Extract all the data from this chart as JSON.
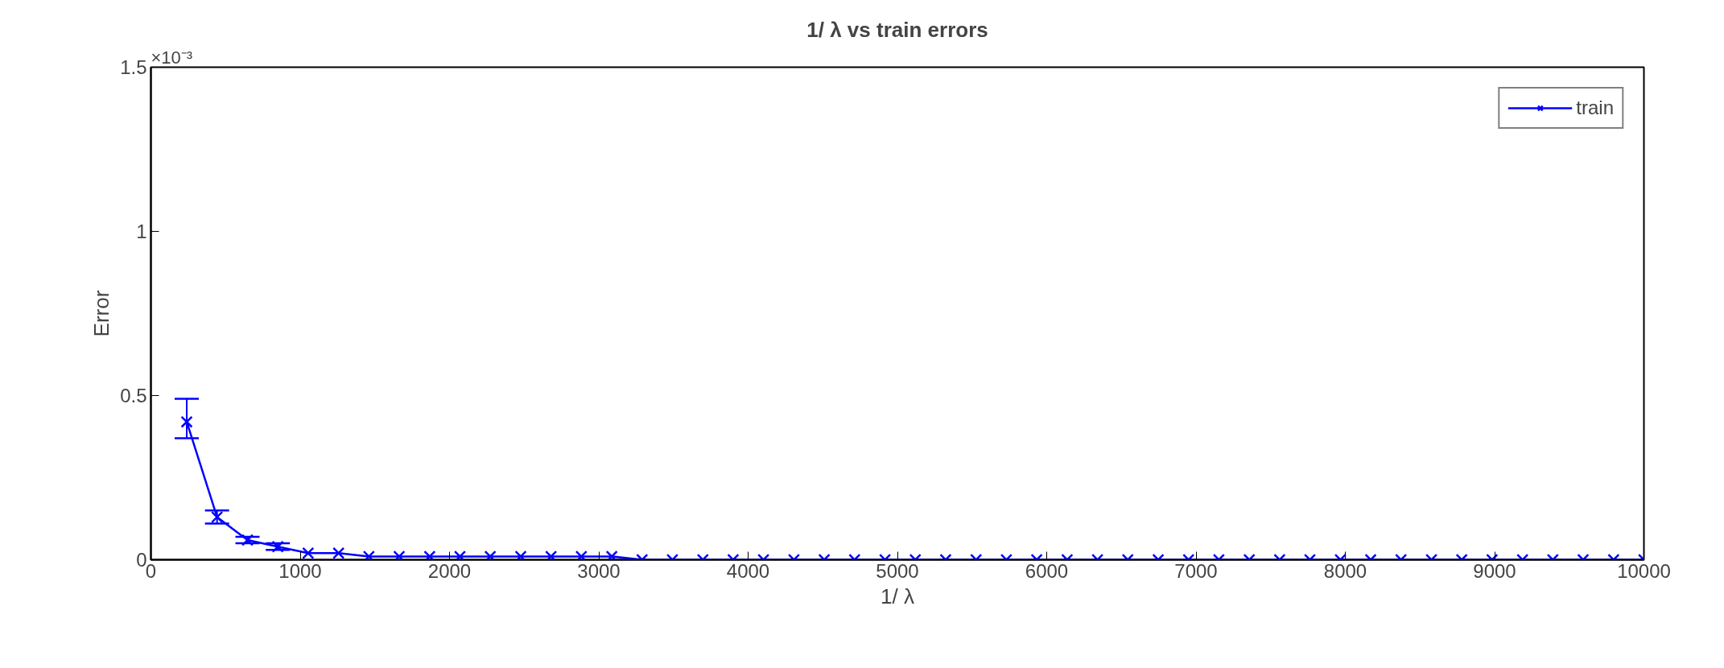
{
  "chart_data": {
    "type": "line",
    "title": "1/ λ vs train errors",
    "xlabel": "1/ λ",
    "ylabel": "Error",
    "annotations": [
      "×10⁻³"
    ],
    "x": [
      240,
      443,
      647,
      850,
      1053,
      1257,
      1460,
      1663,
      1867,
      2070,
      2273,
      2477,
      2680,
      2883,
      3087,
      3290,
      3493,
      3697,
      3900,
      4103,
      4307,
      4510,
      4713,
      4917,
      5120,
      5323,
      5527,
      5730,
      5933,
      6137,
      6340,
      6543,
      6747,
      6950,
      7153,
      7357,
      7560,
      7763,
      7967,
      8170,
      8373,
      8577,
      8780,
      8983,
      9187,
      9390,
      9593,
      9797,
      10000
    ],
    "series": [
      {
        "name": "train",
        "color": "#0000ff",
        "values": [
          0.42,
          0.13,
          0.06,
          0.04,
          0.02,
          0.02,
          0.01,
          0.01,
          0.01,
          0.01,
          0.01,
          0.01,
          0.01,
          0.01,
          0.01,
          0,
          0,
          0,
          0,
          0,
          0,
          0,
          0,
          0,
          0,
          0,
          0,
          0,
          0,
          0,
          0,
          0,
          0,
          0,
          0,
          0,
          0,
          0,
          0,
          0,
          0,
          0,
          0,
          0,
          0,
          0,
          0,
          0,
          0
        ],
        "errors": [
          [
            0.37,
            0.49
          ],
          0.02,
          0.01,
          0.01,
          null,
          null,
          null,
          null,
          null,
          null,
          null,
          null,
          null,
          null,
          null,
          null,
          null,
          null,
          null,
          null,
          null,
          null,
          null,
          null,
          null,
          null,
          null,
          null,
          null,
          null,
          null,
          null,
          null,
          null,
          null,
          null,
          null,
          null,
          null,
          null,
          null,
          null,
          null,
          null,
          null,
          null,
          null,
          null,
          null
        ]
      }
    ],
    "xlim": [
      0,
      10000
    ],
    "ylim": [
      0,
      1.5
    ],
    "xticks": [
      0,
      1000,
      2000,
      3000,
      4000,
      5000,
      6000,
      7000,
      8000,
      9000,
      10000
    ],
    "yticks": [
      0,
      0.5,
      1,
      1.5
    ],
    "grid": false,
    "legend": "top right",
    "marker": "cross",
    "line_style": "solid"
  }
}
